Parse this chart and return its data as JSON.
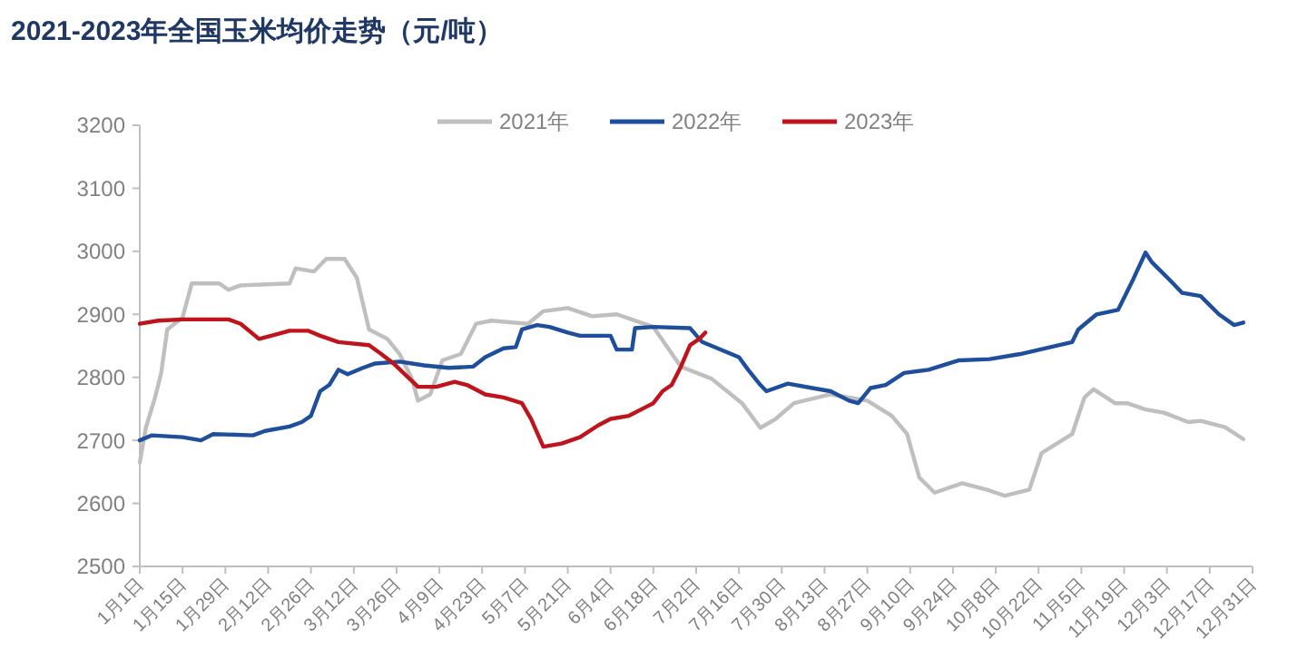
{
  "chart_data": {
    "type": "line",
    "title": "2021-2023年全国玉米均价走势（元/吨）",
    "xlim": [
      "--01-01",
      "--12-31"
    ],
    "xticks": [
      {
        "value": "--01-01",
        "label": "1月1日"
      },
      {
        "value": "--01-15",
        "label": "1月15日"
      },
      {
        "value": "--01-29",
        "label": "1月29日"
      },
      {
        "value": "--02-12",
        "label": "2月12日"
      },
      {
        "value": "--02-26",
        "label": "2月26日"
      },
      {
        "value": "--03-12",
        "label": "3月12日"
      },
      {
        "value": "--03-26",
        "label": "3月26日"
      },
      {
        "value": "--04-09",
        "label": "4月9日"
      },
      {
        "value": "--04-23",
        "label": "4月23日"
      },
      {
        "value": "--05-07",
        "label": "5月7日"
      },
      {
        "value": "--05-21",
        "label": "5月21日"
      },
      {
        "value": "--06-04",
        "label": "6月4日"
      },
      {
        "value": "--06-18",
        "label": "6月18日"
      },
      {
        "value": "--07-02",
        "label": "7月2日"
      },
      {
        "value": "--07-16",
        "label": "7月16日"
      },
      {
        "value": "--07-30",
        "label": "7月30日"
      },
      {
        "value": "--08-13",
        "label": "8月13日"
      },
      {
        "value": "--08-27",
        "label": "8月27日"
      },
      {
        "value": "--09-10",
        "label": "9月10日"
      },
      {
        "value": "--09-24",
        "label": "9月24日"
      },
      {
        "value": "--10-08",
        "label": "10月8日"
      },
      {
        "value": "--10-22",
        "label": "10月22日"
      },
      {
        "value": "--11-05",
        "label": "11月5日"
      },
      {
        "value": "--11-19",
        "label": "11月19日"
      },
      {
        "value": "--12-03",
        "label": "12月3日"
      },
      {
        "value": "--12-17",
        "label": "12月17日"
      },
      {
        "value": "--12-31",
        "label": "12月31日"
      }
    ],
    "ylim": [
      2500,
      3200
    ],
    "yticks": [
      2500,
      2600,
      2700,
      2800,
      2900,
      3000,
      3100,
      3200
    ],
    "grid": false,
    "legend": "top",
    "marker": "none",
    "line_style": "solid",
    "series": [
      {
        "name": "2021年",
        "color": "#bfbfbf",
        "x": [
          "--01-01",
          "--01-03",
          "--01-06",
          "--01-08",
          "--01-10",
          "--01-15",
          "--01-18",
          "--01-27",
          "--01-30",
          "--02-03",
          "--02-19",
          "--02-21",
          "--02-27",
          "--03-03",
          "--03-09",
          "--03-13",
          "--03-17",
          "--03-23",
          "--03-27",
          "--03-31",
          "--04-02",
          "--04-06",
          "--04-10",
          "--04-16",
          "--04-21",
          "--04-26",
          "--05-08",
          "--05-13",
          "--05-21",
          "--05-29",
          "--06-06",
          "--06-18",
          "--06-27",
          "--07-07",
          "--07-17",
          "--07-23",
          "--07-28",
          "--08-03",
          "--08-15",
          "--08-27",
          "--09-04",
          "--09-09",
          "--09-13",
          "--09-18",
          "--09-27",
          "--10-05",
          "--10-11",
          "--10-19",
          "--10-23",
          "--11-02",
          "--11-06",
          "--11-09",
          "--11-16",
          "--11-20",
          "--11-26",
          "--12-02",
          "--12-10",
          "--12-14",
          "--12-22",
          "--12-28"
        ],
        "values": [
          2665,
          2720,
          2768,
          2807,
          2876,
          2895,
          2949,
          2949,
          2939,
          2946,
          2949,
          2973,
          2968,
          2988,
          2988,
          2958,
          2876,
          2861,
          2837,
          2798,
          2763,
          2773,
          2827,
          2837,
          2885,
          2890,
          2885,
          2905,
          2910,
          2897,
          2900,
          2880,
          2817,
          2798,
          2759,
          2720,
          2734,
          2759,
          2773,
          2763,
          2739,
          2710,
          2641,
          2617,
          2632,
          2622,
          2612,
          2622,
          2680,
          2710,
          2768,
          2781,
          2759,
          2759,
          2749,
          2744,
          2729,
          2731,
          2721,
          2702
        ]
      },
      {
        "name": "2022年",
        "color": "#1f4e9c",
        "x": [
          "--01-01",
          "--01-05",
          "--01-15",
          "--01-21",
          "--01-25",
          "--02-07",
          "--02-11",
          "--02-19",
          "--02-23",
          "--02-26",
          "--03-01",
          "--03-04",
          "--03-07",
          "--03-10",
          "--03-15",
          "--03-19",
          "--03-27",
          "--04-04",
          "--04-12",
          "--04-20",
          "--04-24",
          "--04-30",
          "--05-04",
          "--05-06",
          "--05-11",
          "--05-15",
          "--05-21",
          "--05-25",
          "--06-04",
          "--06-06",
          "--06-11",
          "--06-12",
          "--06-18",
          "--06-30",
          "--07-04",
          "--07-16",
          "--07-19",
          "--07-23",
          "--07-25",
          "--08-01",
          "--08-09",
          "--08-15",
          "--08-21",
          "--08-24",
          "--08-28",
          "--09-02",
          "--09-08",
          "--09-16",
          "--09-26",
          "--10-06",
          "--10-16",
          "--10-24",
          "--11-02",
          "--11-04",
          "--11-10",
          "--11-17",
          "--11-22",
          "--11-26",
          "--11-28",
          "--12-04",
          "--12-08",
          "--12-14",
          "--12-20",
          "--12-25",
          "--12-28"
        ],
        "values": [
          2700,
          2708,
          2705,
          2700,
          2710,
          2708,
          2715,
          2722,
          2729,
          2739,
          2778,
          2788,
          2812,
          2805,
          2815,
          2822,
          2825,
          2819,
          2815,
          2817,
          2832,
          2846,
          2848,
          2876,
          2883,
          2880,
          2871,
          2866,
          2866,
          2844,
          2844,
          2878,
          2880,
          2878,
          2856,
          2832,
          2812,
          2788,
          2778,
          2790,
          2783,
          2778,
          2763,
          2759,
          2783,
          2788,
          2807,
          2812,
          2827,
          2829,
          2837,
          2846,
          2856,
          2876,
          2900,
          2907,
          2956,
          2998,
          2983,
          2954,
          2934,
          2929,
          2900,
          2883,
          2887
        ]
      },
      {
        "name": "2023年",
        "color": "#c0141c",
        "x": [
          "--01-01",
          "--01-07",
          "--01-15",
          "--01-30",
          "--02-03",
          "--02-09",
          "--02-13",
          "--02-19",
          "--02-25",
          "--03-01",
          "--03-07",
          "--03-17",
          "--03-21",
          "--03-25",
          "--04-02",
          "--04-08",
          "--04-14",
          "--04-18",
          "--04-24",
          "--04-30",
          "--05-06",
          "--05-09",
          "--05-13",
          "--05-19",
          "--05-25",
          "--05-31",
          "--06-04",
          "--06-10",
          "--06-16",
          "--06-18",
          "--06-21",
          "--06-24",
          "--06-27",
          "--06-30",
          "--07-03",
          "--07-05"
        ],
        "values": [
          2885,
          2890,
          2892,
          2892,
          2885,
          2861,
          2866,
          2874,
          2874,
          2866,
          2856,
          2851,
          2837,
          2822,
          2785,
          2785,
          2793,
          2788,
          2773,
          2768,
          2759,
          2734,
          2690,
          2695,
          2705,
          2724,
          2734,
          2739,
          2754,
          2759,
          2778,
          2788,
          2817,
          2851,
          2861,
          2871
        ]
      }
    ]
  }
}
